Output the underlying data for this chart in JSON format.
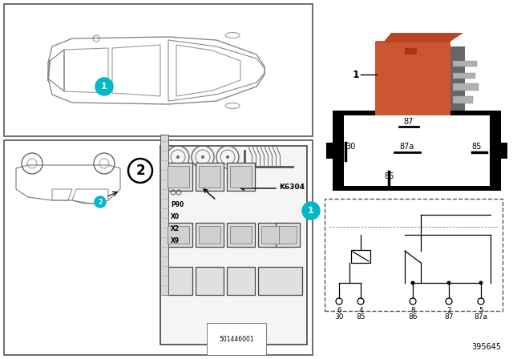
{
  "bg_color": "#ffffff",
  "teal_color": "#00b8c8",
  "relay_orange": "#cc5533",
  "relay_orange_dark": "#aa3311",
  "relay_pin_labels_box": [
    "87",
    "87a",
    "85",
    "30",
    "86"
  ],
  "k6304_label": "K6304",
  "location_labels": [
    "P90",
    "X0",
    "X2",
    "X9"
  ],
  "diagram_number": "501446001",
  "part_number": "395645",
  "pin_col_labels_top": [
    "6",
    "4",
    "8",
    "2",
    "5"
  ],
  "pin_col_labels_bot": [
    "30",
    "85",
    "86",
    "87",
    "87a"
  ]
}
